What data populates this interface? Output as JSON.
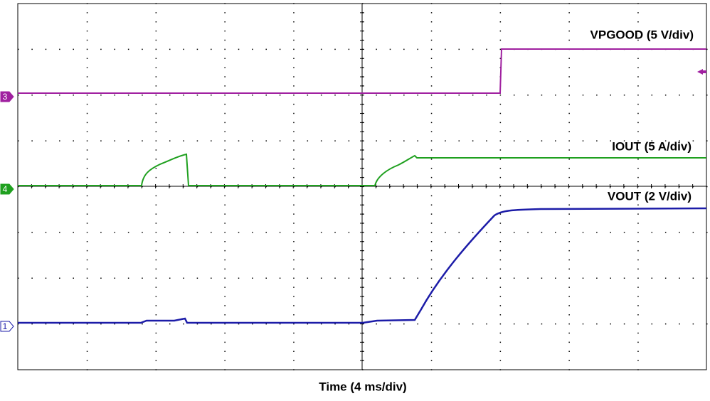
{
  "chart_data": {
    "type": "line",
    "x_label": "Time (4 ms/div)",
    "series": [
      {
        "name": "VPGOOD (5 V/div)",
        "color": "#a020a0",
        "marker": "3"
      },
      {
        "name": "IOUT (5 A/div)",
        "color": "#1fa01f",
        "marker": "4"
      },
      {
        "name": "VOUT (2 V/div)",
        "color": "#1c1ca8",
        "marker": "1"
      }
    ]
  }
}
